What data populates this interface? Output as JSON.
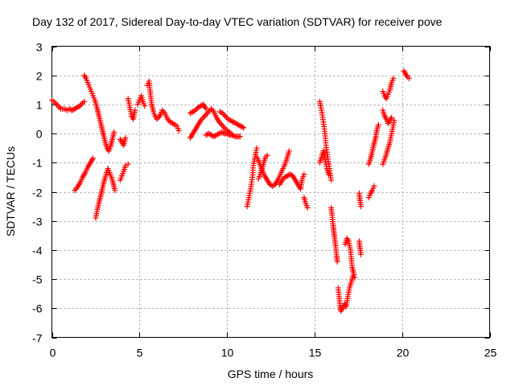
{
  "chart_data": {
    "type": "scatter",
    "title": "Day 132 of 2017, Sidereal Day-to-day VTEC variation (SDTVAR) for receiver pove",
    "xlabel": "GPS time / hours",
    "ylabel": "SDTVAR / TECUs",
    "xlim": [
      0,
      25
    ],
    "ylim": [
      -7,
      3
    ],
    "xticks": [
      "0",
      "5",
      "10",
      "15",
      "20",
      "25"
    ],
    "yticks": [
      "-7",
      "-6",
      "-5",
      "-4",
      "-3",
      "-2",
      "-1",
      "0",
      "1",
      "2",
      "3"
    ],
    "grid": true,
    "marker": "+",
    "color": "#ff0000",
    "segments": [
      {
        "points": [
          [
            0.0,
            1.15
          ],
          [
            0.2,
            1.05
          ],
          [
            0.35,
            0.95
          ],
          [
            0.5,
            0.85
          ],
          [
            0.7,
            0.85
          ],
          [
            0.9,
            0.8
          ],
          [
            1.0,
            0.85
          ],
          [
            1.15,
            0.8
          ],
          [
            1.3,
            0.85
          ],
          [
            1.45,
            0.9
          ],
          [
            1.6,
            0.95
          ],
          [
            1.75,
            1.05
          ],
          [
            1.85,
            1.1
          ]
        ]
      },
      {
        "points": [
          [
            1.3,
            -1.95
          ],
          [
            1.45,
            -1.85
          ],
          [
            1.6,
            -1.7
          ],
          [
            1.75,
            -1.5
          ],
          [
            1.9,
            -1.35
          ],
          [
            2.05,
            -1.15
          ],
          [
            2.2,
            -1.0
          ],
          [
            2.35,
            -0.85
          ]
        ]
      },
      {
        "points": [
          [
            1.85,
            2.0
          ],
          [
            1.95,
            1.9
          ],
          [
            2.05,
            1.75
          ],
          [
            2.15,
            1.6
          ],
          [
            2.25,
            1.45
          ],
          [
            2.35,
            1.3
          ],
          [
            2.45,
            1.15
          ],
          [
            2.55,
            0.95
          ],
          [
            2.65,
            0.7
          ],
          [
            2.75,
            0.45
          ],
          [
            2.85,
            0.2
          ],
          [
            2.95,
            -0.05
          ],
          [
            3.05,
            -0.3
          ],
          [
            3.15,
            -0.5
          ],
          [
            3.25,
            -0.6
          ],
          [
            3.35,
            -0.45
          ],
          [
            3.45,
            -0.2
          ],
          [
            3.55,
            0.05
          ]
        ]
      },
      {
        "points": [
          [
            2.5,
            -2.9
          ],
          [
            2.6,
            -2.6
          ],
          [
            2.7,
            -2.35
          ],
          [
            2.8,
            -2.1
          ],
          [
            2.9,
            -1.85
          ],
          [
            3.0,
            -1.6
          ],
          [
            3.1,
            -1.4
          ],
          [
            3.2,
            -1.2
          ],
          [
            3.3,
            -1.35
          ],
          [
            3.4,
            -1.5
          ],
          [
            3.5,
            -1.7
          ],
          [
            3.6,
            -1.95
          ]
        ]
      },
      {
        "points": [
          [
            3.9,
            -0.2
          ],
          [
            4.0,
            -0.3
          ],
          [
            4.1,
            -0.4
          ],
          [
            4.2,
            -0.15
          ]
        ]
      },
      {
        "points": [
          [
            3.9,
            -1.6
          ],
          [
            4.0,
            -1.45
          ],
          [
            4.1,
            -1.3
          ],
          [
            4.2,
            -1.1
          ]
        ]
      },
      {
        "points": [
          [
            4.35,
            -1.05
          ]
        ]
      },
      {
        "points": [
          [
            4.35,
            1.2
          ],
          [
            4.45,
            0.9
          ],
          [
            4.55,
            0.6
          ],
          [
            4.65,
            0.5
          ],
          [
            4.75,
            0.8
          ]
        ]
      },
      {
        "points": [
          [
            4.9,
            1.0
          ],
          [
            5.0,
            1.15
          ],
          [
            5.1,
            1.3
          ],
          [
            5.2,
            1.1
          ],
          [
            5.3,
            0.95
          ]
        ]
      },
      {
        "points": [
          [
            5.45,
            1.65
          ],
          [
            5.55,
            1.8
          ],
          [
            5.6,
            1.5
          ],
          [
            5.7,
            1.0
          ],
          [
            5.8,
            0.75
          ],
          [
            5.9,
            0.6
          ],
          [
            6.0,
            0.5
          ],
          [
            6.1,
            0.55
          ],
          [
            6.2,
            0.65
          ],
          [
            6.3,
            0.8
          ],
          [
            6.45,
            0.7
          ],
          [
            6.6,
            0.5
          ],
          [
            6.75,
            0.4
          ],
          [
            6.9,
            0.35
          ],
          [
            7.05,
            0.3
          ],
          [
            7.15,
            0.25
          ],
          [
            7.25,
            0.1
          ]
        ]
      },
      {
        "points": [
          [
            7.9,
            0.7
          ],
          [
            8.05,
            0.75
          ],
          [
            8.2,
            0.8
          ],
          [
            8.35,
            0.9
          ],
          [
            8.5,
            0.95
          ],
          [
            8.65,
            1.0
          ],
          [
            8.8,
            0.85
          ]
        ]
      },
      {
        "points": [
          [
            7.9,
            -0.15
          ],
          [
            8.05,
            0.0
          ],
          [
            8.2,
            0.15
          ],
          [
            8.35,
            0.3
          ],
          [
            8.5,
            0.45
          ],
          [
            8.65,
            0.55
          ],
          [
            8.8,
            0.65
          ],
          [
            8.95,
            0.75
          ],
          [
            9.1,
            0.85
          ],
          [
            9.25,
            0.75
          ],
          [
            9.4,
            0.55
          ],
          [
            9.55,
            0.4
          ],
          [
            9.7,
            0.3
          ],
          [
            9.85,
            0.2
          ],
          [
            10.0,
            0.1
          ],
          [
            10.15,
            0.05
          ],
          [
            10.3,
            -0.05
          ]
        ]
      },
      {
        "points": [
          [
            8.8,
            -0.05
          ],
          [
            8.95,
            0.0
          ],
          [
            9.1,
            -0.05
          ],
          [
            9.25,
            -0.1
          ],
          [
            9.4,
            -0.05
          ],
          [
            9.55,
            0.0
          ],
          [
            9.7,
            0.05
          ],
          [
            9.85,
            0.0
          ],
          [
            10.0,
            0.0
          ],
          [
            10.15,
            -0.05
          ],
          [
            10.3,
            -0.05
          ],
          [
            10.45,
            -0.1
          ],
          [
            10.6,
            -0.1
          ],
          [
            10.75,
            -0.1
          ]
        ]
      },
      {
        "points": [
          [
            9.6,
            0.75
          ],
          [
            9.75,
            0.7
          ],
          [
            9.9,
            0.6
          ],
          [
            10.05,
            0.5
          ],
          [
            10.2,
            0.45
          ],
          [
            10.35,
            0.4
          ],
          [
            10.5,
            0.35
          ],
          [
            10.65,
            0.3
          ],
          [
            10.8,
            0.25
          ],
          [
            10.95,
            0.2
          ]
        ]
      },
      {
        "points": [
          [
            11.15,
            -2.5
          ],
          [
            11.25,
            -2.2
          ],
          [
            11.35,
            -1.9
          ],
          [
            11.45,
            -1.5
          ],
          [
            11.5,
            -1.1
          ],
          [
            11.6,
            -0.8
          ],
          [
            11.7,
            -0.5
          ]
        ]
      },
      {
        "points": [
          [
            11.7,
            -0.8
          ],
          [
            11.85,
            -1.0
          ],
          [
            12.0,
            -1.25
          ],
          [
            12.15,
            -1.45
          ],
          [
            12.3,
            -1.6
          ],
          [
            12.45,
            -1.75
          ],
          [
            12.6,
            -1.8
          ],
          [
            12.75,
            -1.75
          ],
          [
            12.9,
            -1.6
          ],
          [
            13.05,
            -1.4
          ],
          [
            13.2,
            -1.2
          ],
          [
            13.35,
            -1.0
          ],
          [
            13.45,
            -0.8
          ],
          [
            13.55,
            -0.6
          ]
        ]
      },
      {
        "points": [
          [
            11.8,
            -1.55
          ],
          [
            11.9,
            -1.4
          ],
          [
            12.0,
            -1.2
          ],
          [
            12.1,
            -1.0
          ],
          [
            12.2,
            -0.8
          ],
          [
            12.3,
            -0.75
          ]
        ]
      },
      {
        "points": [
          [
            13.0,
            -1.75
          ],
          [
            13.15,
            -1.6
          ],
          [
            13.3,
            -1.5
          ],
          [
            13.45,
            -1.45
          ],
          [
            13.6,
            -1.4
          ],
          [
            13.75,
            -1.45
          ],
          [
            13.9,
            -1.6
          ],
          [
            14.05,
            -1.75
          ],
          [
            14.2,
            -1.9
          ],
          [
            14.3,
            -1.55
          ],
          [
            14.4,
            -1.4
          ]
        ]
      },
      {
        "points": [
          [
            14.4,
            -2.2
          ],
          [
            14.5,
            -2.4
          ],
          [
            14.6,
            -2.55
          ]
        ]
      },
      {
        "points": [
          [
            15.3,
            1.1
          ],
          [
            15.4,
            0.8
          ],
          [
            15.5,
            0.4
          ],
          [
            15.6,
            0.0
          ],
          [
            15.65,
            -0.4
          ],
          [
            15.75,
            -0.8
          ],
          [
            15.85,
            -1.2
          ],
          [
            15.95,
            -1.6
          ]
        ]
      },
      {
        "points": [
          [
            15.3,
            -1.0
          ],
          [
            15.4,
            -0.8
          ],
          [
            15.5,
            -0.6
          ],
          [
            15.6,
            -0.9
          ],
          [
            15.7,
            -1.2
          ],
          [
            15.8,
            -1.4
          ]
        ]
      },
      {
        "points": [
          [
            15.95,
            -2.55
          ],
          [
            16.0,
            -2.8
          ],
          [
            16.05,
            -3.1
          ],
          [
            16.1,
            -3.35
          ],
          [
            16.15,
            -3.6
          ],
          [
            16.2,
            -3.85
          ],
          [
            16.25,
            -4.15
          ],
          [
            16.3,
            -4.4
          ]
        ]
      },
      {
        "points": [
          [
            16.35,
            -5.3
          ],
          [
            16.4,
            -5.6
          ],
          [
            16.45,
            -5.9
          ],
          [
            16.5,
            -6.1
          ],
          [
            16.6,
            -6.0
          ],
          [
            16.7,
            -5.85
          ],
          [
            16.8,
            -5.95
          ],
          [
            16.9,
            -5.6
          ],
          [
            17.0,
            -5.3
          ],
          [
            17.1,
            -5.1
          ],
          [
            17.2,
            -4.9
          ],
          [
            17.3,
            -4.95
          ]
        ]
      },
      {
        "points": [
          [
            16.75,
            -3.8
          ],
          [
            16.85,
            -3.6
          ],
          [
            16.95,
            -3.7
          ],
          [
            17.05,
            -4.0
          ],
          [
            17.1,
            -4.3
          ],
          [
            17.15,
            -4.6
          ],
          [
            17.25,
            -4.85
          ]
        ]
      },
      {
        "points": [
          [
            17.55,
            -3.7
          ],
          [
            17.6,
            -3.95
          ],
          [
            17.65,
            -4.15
          ]
        ]
      },
      {
        "points": [
          [
            17.55,
            -2.05
          ],
          [
            17.6,
            -2.3
          ],
          [
            17.65,
            -2.5
          ]
        ]
      },
      {
        "points": [
          [
            18.1,
            -1.05
          ],
          [
            18.2,
            -0.85
          ],
          [
            18.3,
            -0.6
          ],
          [
            18.4,
            -0.35
          ],
          [
            18.5,
            -0.1
          ],
          [
            18.55,
            0.1
          ],
          [
            18.65,
            0.3
          ]
        ]
      },
      {
        "points": [
          [
            18.1,
            -2.2
          ],
          [
            18.2,
            -2.05
          ],
          [
            18.3,
            -1.95
          ],
          [
            18.4,
            -1.8
          ]
        ]
      },
      {
        "points": [
          [
            18.9,
            1.45
          ],
          [
            19.0,
            1.3
          ],
          [
            19.1,
            1.2
          ],
          [
            19.2,
            1.35
          ],
          [
            19.3,
            1.5
          ],
          [
            19.4,
            1.75
          ],
          [
            19.5,
            1.9
          ]
        ]
      },
      {
        "points": [
          [
            18.9,
            0.8
          ],
          [
            19.0,
            0.6
          ],
          [
            19.1,
            0.5
          ],
          [
            19.2,
            0.35
          ],
          [
            19.3,
            0.45
          ],
          [
            19.4,
            0.55
          ]
        ]
      },
      {
        "points": [
          [
            18.9,
            -1.05
          ],
          [
            19.0,
            -0.9
          ],
          [
            19.1,
            -0.7
          ],
          [
            19.2,
            -0.5
          ],
          [
            19.3,
            -0.3
          ],
          [
            19.4,
            0.0
          ],
          [
            19.5,
            0.3
          ],
          [
            19.55,
            0.45
          ]
        ]
      },
      {
        "points": [
          [
            20.1,
            2.15
          ],
          [
            20.2,
            2.05
          ],
          [
            20.3,
            1.95
          ],
          [
            20.4,
            1.9
          ]
        ]
      }
    ]
  }
}
